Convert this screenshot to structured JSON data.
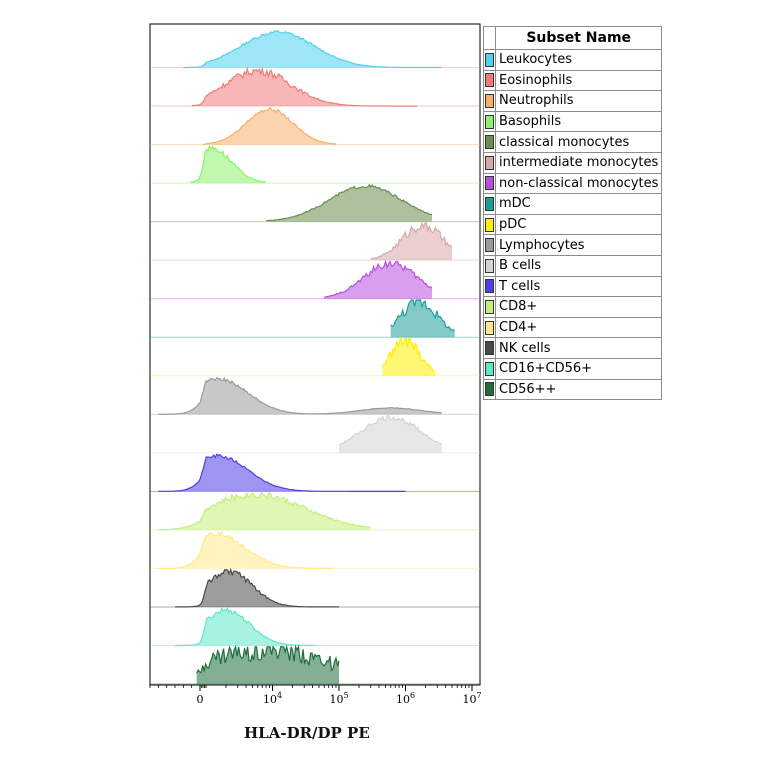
{
  "chart_data": {
    "type": "area",
    "title": "",
    "xlabel": "HLA-DR/DP PE",
    "ylabel": "",
    "x_scale": "biexponential",
    "xlim": [
      -3000,
      10000000
    ],
    "x_ticks": [
      {
        "value": 0,
        "label": "0"
      },
      {
        "value": 10000,
        "label": "10^4"
      },
      {
        "value": 100000,
        "label": "10^5"
      },
      {
        "value": 1000000,
        "label": "10^6"
      },
      {
        "value": 10000000,
        "label": "10^7"
      }
    ],
    "legend_header": "Subset Name",
    "legend_position": "right",
    "series": [
      {
        "name": "Leukocytes",
        "color": "#4fd1f0",
        "peaks": [
          {
            "x": 12000,
            "w": 0.55,
            "h": 1.0
          }
        ],
        "extent": [
          -1000,
          3500000
        ],
        "noise": 0.05
      },
      {
        "name": "Eosinophils",
        "color": "#f07b7b",
        "peaks": [
          {
            "x": 6000,
            "w": 0.5,
            "h": 1.0
          }
        ],
        "extent": [
          -500,
          1500000
        ],
        "noise": 0.12
      },
      {
        "name": "Neutrophils",
        "color": "#f5b06e",
        "peaks": [
          {
            "x": 9000,
            "w": 0.35,
            "h": 1.0
          }
        ],
        "extent": [
          500,
          90000
        ],
        "noise": 0.05
      },
      {
        "name": "Basophils",
        "color": "#8ff06e",
        "peaks": [
          {
            "x": 1200,
            "w": 0.3,
            "h": 1.0
          }
        ],
        "extent": [
          -600,
          8000
        ],
        "noise": 0.1
      },
      {
        "name": "classical monocytes",
        "color": "#6b8e4e",
        "peaks": [
          {
            "x": 250000,
            "w": 0.55,
            "h": 1.0
          }
        ],
        "extent": [
          8000,
          2500000
        ],
        "noise": 0.05
      },
      {
        "name": "intermediate monocytes",
        "color": "#d7a8a8",
        "peaks": [
          {
            "x": 1800000,
            "w": 0.3,
            "h": 1.0
          }
        ],
        "extent": [
          300000,
          5000000
        ],
        "noise": 0.18
      },
      {
        "name": "non-classical monocytes",
        "color": "#b94ee0",
        "peaks": [
          {
            "x": 600000,
            "w": 0.4,
            "h": 1.0
          }
        ],
        "extent": [
          60000,
          2500000
        ],
        "noise": 0.12
      },
      {
        "name": "mDC",
        "color": "#1e9e9a",
        "peaks": [
          {
            "x": 1600000,
            "w": 0.28,
            "h": 1.0
          }
        ],
        "extent": [
          600000,
          5500000
        ],
        "noise": 0.2
      },
      {
        "name": "pDC",
        "color": "#fff000",
        "peaks": [
          {
            "x": 1000000,
            "w": 0.22,
            "h": 1.0
          }
        ],
        "extent": [
          450000,
          2800000
        ],
        "noise": 0.2
      },
      {
        "name": "Lymphocytes",
        "color": "#9a9a9a",
        "peaks": [
          {
            "x": 1500,
            "w": 0.45,
            "h": 1.0
          },
          {
            "x": 600000,
            "w": 0.45,
            "h": 0.18
          }
        ],
        "extent": [
          -2500,
          3500000
        ],
        "noise": 0.05
      },
      {
        "name": "B cells",
        "color": "#d4d4d4",
        "peaks": [
          {
            "x": 600000,
            "w": 0.45,
            "h": 1.0
          }
        ],
        "extent": [
          100000,
          3500000
        ],
        "noise": 0.08
      },
      {
        "name": "T cells",
        "color": "#4e3ee6",
        "peaks": [
          {
            "x": 1500,
            "w": 0.45,
            "h": 1.0
          }
        ],
        "extent": [
          -2500,
          1000000
        ],
        "noise": 0.05
      },
      {
        "name": "CD8+",
        "color": "#c2f07a",
        "peaks": [
          {
            "x": 5500,
            "w": 0.75,
            "h": 1.0
          }
        ],
        "extent": [
          -2500,
          300000
        ],
        "noise": 0.1
      },
      {
        "name": "CD4+",
        "color": "#ffe98a",
        "peaks": [
          {
            "x": 1300,
            "w": 0.45,
            "h": 1.0
          }
        ],
        "extent": [
          -2500,
          80000
        ],
        "noise": 0.08
      },
      {
        "name": "NK cells",
        "color": "#4a4a4a",
        "peaks": [
          {
            "x": 2200,
            "w": 0.35,
            "h": 1.0
          }
        ],
        "extent": [
          -1500,
          100000
        ],
        "noise": 0.1
      },
      {
        "name": "CD16+CD56+",
        "color": "#5ee8c8",
        "peaks": [
          {
            "x": 2000,
            "w": 0.35,
            "h": 1.0
          }
        ],
        "extent": [
          -1500,
          45000
        ],
        "noise": 0.08
      },
      {
        "name": "CD56++",
        "color": "#1e6e3c",
        "peaks": [
          {
            "x": 8000,
            "w": 0.95,
            "h": 1.0
          }
        ],
        "extent": [
          -200,
          100000
        ],
        "noise": 0.35
      }
    ]
  },
  "legend": {
    "header": "Subset Name",
    "items": [
      "Leukocytes",
      "Eosinophils",
      "Neutrophils",
      "Basophils",
      "classical monocytes",
      "intermediate monocytes",
      "non-classical monocytes",
      "mDC",
      "pDC",
      "Lymphocytes",
      "B cells",
      "T cells",
      "CD8+",
      "CD4+",
      "NK cells",
      "CD16+CD56+",
      "CD56++"
    ]
  }
}
